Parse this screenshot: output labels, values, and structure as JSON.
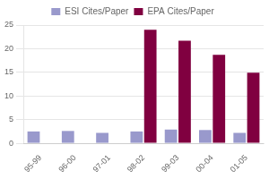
{
  "chart_data": {
    "type": "bar",
    "categories": [
      "95-99",
      "96-00",
      "97-01",
      "98-02",
      "99-03",
      "00-04",
      "01-05"
    ],
    "series": [
      {
        "name": "ESI Cites/Paper",
        "color": "#9999cc",
        "values": [
          2.5,
          2.6,
          2.2,
          2.5,
          2.9,
          2.8,
          2.2
        ]
      },
      {
        "name": "EPA Cites/Paper",
        "color": "#800040",
        "values": [
          0,
          0,
          0,
          24,
          21.7,
          18.7,
          14.9
        ]
      }
    ],
    "ylim": [
      0,
      25
    ],
    "yticks": [
      0,
      5,
      10,
      15,
      20,
      25
    ],
    "grid": true,
    "legend": "top"
  }
}
